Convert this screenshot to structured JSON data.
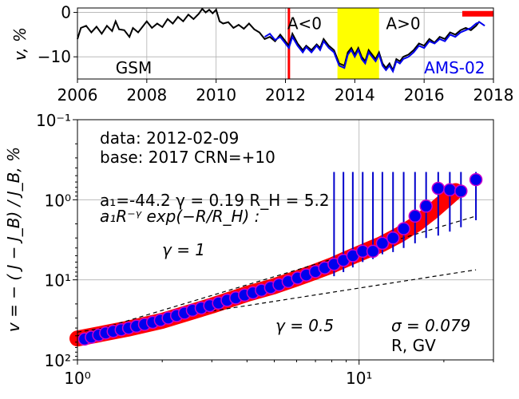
{
  "chart_data": [
    {
      "type": "line",
      "ylabel": "v, %",
      "xlim": [
        2006,
        2018
      ],
      "ylim": [
        -15,
        1
      ],
      "x_ticks": [
        2006,
        2008,
        2010,
        2012,
        2014,
        2016,
        2018
      ],
      "y_ticks": [
        0,
        -10
      ],
      "y_tick_labels": [
        "0",
        "−10"
      ],
      "grid": true,
      "series": [
        {
          "name": "GSM",
          "color": "#000000",
          "points": [
            [
              2006.0,
              -6
            ],
            [
              2006.1,
              -3.5
            ],
            [
              2006.25,
              -3
            ],
            [
              2006.4,
              -4.5
            ],
            [
              2006.55,
              -3.2
            ],
            [
              2006.7,
              -4.8
            ],
            [
              2006.85,
              -3
            ],
            [
              2007.0,
              -4.2
            ],
            [
              2007.1,
              -2
            ],
            [
              2007.2,
              -3.8
            ],
            [
              2007.35,
              -4
            ],
            [
              2007.5,
              -5.5
            ],
            [
              2007.6,
              -3.5
            ],
            [
              2007.75,
              -4.5
            ],
            [
              2007.9,
              -3
            ],
            [
              2008.0,
              -2
            ],
            [
              2008.15,
              -3.5
            ],
            [
              2008.3,
              -2.5
            ],
            [
              2008.45,
              -3.3
            ],
            [
              2008.6,
              -1.5
            ],
            [
              2008.75,
              -2.5
            ],
            [
              2008.9,
              -1
            ],
            [
              2009.05,
              -2
            ],
            [
              2009.2,
              -0.5
            ],
            [
              2009.35,
              -1.5
            ],
            [
              2009.5,
              -0.3
            ],
            [
              2009.6,
              0.8
            ],
            [
              2009.7,
              0
            ],
            [
              2009.8,
              0.6
            ],
            [
              2009.9,
              -0.2
            ],
            [
              2010.0,
              0.6
            ],
            [
              2010.1,
              -2
            ],
            [
              2010.2,
              -2.5
            ],
            [
              2010.35,
              -2.2
            ],
            [
              2010.5,
              -3.5
            ],
            [
              2010.65,
              -2.8
            ],
            [
              2010.8,
              -3.7
            ],
            [
              2010.95,
              -2.5
            ],
            [
              2011.1,
              -3.8
            ],
            [
              2011.25,
              -4.5
            ],
            [
              2011.4,
              -6
            ],
            [
              2011.55,
              -5.5
            ],
            [
              2011.7,
              -6.5
            ],
            [
              2011.85,
              -5
            ],
            [
              2012.0,
              -6.5
            ],
            [
              2012.1,
              -7.5
            ],
            [
              2012.2,
              -4.8
            ],
            [
              2012.35,
              -7
            ],
            [
              2012.5,
              -8.5
            ],
            [
              2012.6,
              -7.5
            ],
            [
              2012.75,
              -8.5
            ],
            [
              2012.9,
              -7.2
            ],
            [
              2013.0,
              -8
            ],
            [
              2013.1,
              -6
            ],
            [
              2013.25,
              -7.5
            ],
            [
              2013.4,
              -8.5
            ],
            [
              2013.55,
              -11.5
            ],
            [
              2013.7,
              -12
            ],
            [
              2013.8,
              -9
            ],
            [
              2013.9,
              -8
            ],
            [
              2014.0,
              -9.5
            ],
            [
              2014.1,
              -8
            ],
            [
              2014.2,
              -10
            ],
            [
              2014.3,
              -11
            ],
            [
              2014.4,
              -8.5
            ],
            [
              2014.5,
              -9.5
            ],
            [
              2014.6,
              -10.5
            ],
            [
              2014.7,
              -9
            ],
            [
              2014.8,
              -11.5
            ],
            [
              2014.9,
              -12.5
            ],
            [
              2015.0,
              -11.5
            ],
            [
              2015.1,
              -13
            ],
            [
              2015.2,
              -10.5
            ],
            [
              2015.3,
              -11
            ],
            [
              2015.4,
              -10
            ],
            [
              2015.55,
              -9.5
            ],
            [
              2015.7,
              -8.5
            ],
            [
              2015.85,
              -7
            ],
            [
              2016.0,
              -7.5
            ],
            [
              2016.15,
              -6
            ],
            [
              2016.3,
              -6.8
            ],
            [
              2016.45,
              -5.5
            ],
            [
              2016.6,
              -6
            ],
            [
              2016.75,
              -4.5
            ],
            [
              2016.9,
              -5
            ],
            [
              2017.05,
              -4
            ],
            [
              2017.2,
              -3.5
            ],
            [
              2017.35,
              -4
            ],
            [
              2017.5,
              -3
            ],
            [
              2017.6,
              -2
            ]
          ]
        },
        {
          "name": "AMS-02",
          "color": "#0000ee",
          "points": [
            [
              2011.4,
              -5.5
            ],
            [
              2011.55,
              -4.8
            ],
            [
              2011.7,
              -6.2
            ],
            [
              2011.85,
              -5.5
            ],
            [
              2012.0,
              -7
            ],
            [
              2012.1,
              -8
            ],
            [
              2012.2,
              -5.5
            ],
            [
              2012.35,
              -7.5
            ],
            [
              2012.5,
              -9
            ],
            [
              2012.6,
              -7.8
            ],
            [
              2012.75,
              -9
            ],
            [
              2012.9,
              -7.5
            ],
            [
              2013.0,
              -8.5
            ],
            [
              2013.1,
              -6.5
            ],
            [
              2013.25,
              -8
            ],
            [
              2013.4,
              -9
            ],
            [
              2013.55,
              -12
            ],
            [
              2013.7,
              -12.5
            ],
            [
              2013.8,
              -9.5
            ],
            [
              2013.9,
              -8.5
            ],
            [
              2014.0,
              -10
            ],
            [
              2014.1,
              -8.5
            ],
            [
              2014.2,
              -10.5
            ],
            [
              2014.3,
              -11.5
            ],
            [
              2014.4,
              -9
            ],
            [
              2014.5,
              -10
            ],
            [
              2014.6,
              -11
            ],
            [
              2014.7,
              -9.5
            ],
            [
              2014.8,
              -12
            ],
            [
              2014.9,
              -13
            ],
            [
              2015.0,
              -12
            ],
            [
              2015.1,
              -13.3
            ],
            [
              2015.2,
              -11
            ],
            [
              2015.3,
              -11.5
            ],
            [
              2015.4,
              -10.5
            ],
            [
              2015.55,
              -10
            ],
            [
              2015.7,
              -9
            ],
            [
              2015.85,
              -7.5
            ],
            [
              2016.0,
              -8
            ],
            [
              2016.15,
              -6.5
            ],
            [
              2016.3,
              -7
            ],
            [
              2016.45,
              -6
            ],
            [
              2016.6,
              -6.5
            ],
            [
              2016.75,
              -5
            ],
            [
              2016.9,
              -5.5
            ],
            [
              2017.05,
              -4.5
            ],
            [
              2017.2,
              -4
            ],
            [
              2017.35,
              -3.5
            ],
            [
              2017.5,
              -2.5
            ],
            [
              2017.6,
              -2.2
            ],
            [
              2017.75,
              -3
            ]
          ]
        }
      ],
      "vertical_marker": {
        "x": 2012.1,
        "color": "#ff0000"
      },
      "shaded_band": {
        "x": [
          2013.5,
          2014.7
        ],
        "color": "#ffff00"
      },
      "base_bar": {
        "x": [
          2017.1,
          2018.0
        ],
        "y": -0.3,
        "color": "#ff0000"
      },
      "annotations": [
        {
          "id": "left",
          "text": "A<0",
          "x": 2012.1,
          "y": -2.5
        },
        {
          "id": "right",
          "text": "A>0",
          "x": 2014.9,
          "y": -2.5
        },
        {
          "id": "gsm",
          "text": "GSM",
          "x": 2007.1,
          "y": -12.5
        },
        {
          "id": "ams",
          "text": "AMS-02",
          "x": 2016.0,
          "y": -12.5,
          "color": "#0000ee"
        }
      ]
    },
    {
      "type": "scatter",
      "xscale": "log",
      "yscale": "log-inverted",
      "xlabel": "R, GV",
      "xlim": [
        1,
        30
      ],
      "ylim": [
        100,
        0.1
      ],
      "x_ticks": [
        1,
        10
      ],
      "x_tick_labels": [
        "10⁰",
        "10¹"
      ],
      "y_ticks": [
        0.1,
        1,
        10,
        100
      ],
      "y_tick_labels": [
        "10⁻¹",
        "10⁰",
        "10¹",
        "10²"
      ],
      "grid": true,
      "points": [
        [
          1.06,
          55
        ],
        [
          1.12,
          52
        ],
        [
          1.19,
          49
        ],
        [
          1.26,
          46
        ],
        [
          1.34,
          44
        ],
        [
          1.43,
          42
        ],
        [
          1.52,
          40
        ],
        [
          1.62,
          38
        ],
        [
          1.73,
          36
        ],
        [
          1.85,
          34
        ],
        [
          1.97,
          32
        ],
        [
          2.1,
          30
        ],
        [
          2.25,
          28
        ],
        [
          2.4,
          26
        ],
        [
          2.56,
          24
        ],
        [
          2.75,
          22.5
        ],
        [
          2.95,
          21
        ],
        [
          3.17,
          19.5
        ],
        [
          3.4,
          18
        ],
        [
          3.65,
          16.8
        ],
        [
          3.92,
          15.5
        ],
        [
          4.2,
          14.5
        ],
        [
          4.5,
          13.5
        ],
        [
          4.85,
          12.5
        ],
        [
          5.2,
          11.5
        ],
        [
          5.6,
          10.5
        ],
        [
          6.05,
          9.5
        ],
        [
          6.5,
          8.7
        ],
        [
          7.0,
          7.9
        ],
        [
          7.55,
          7.1
        ],
        [
          8.15,
          6.4
        ],
        [
          8.8,
          5.7
        ],
        [
          9.5,
          5.0
        ],
        [
          10.3,
          4.4
        ],
        [
          11.2,
          4.4
        ],
        [
          12.1,
          3.5
        ],
        [
          13.2,
          3.0
        ],
        [
          14.4,
          2.3
        ],
        [
          15.8,
          1.6
        ],
        [
          17.3,
          1.2
        ],
        [
          19.1,
          0.72
        ],
        [
          21.0,
          0.75
        ],
        [
          23.0,
          0.78
        ],
        [
          26.0,
          0.56
        ]
      ],
      "error_bars": [
        [
          8.15,
          0.45,
          9.0
        ],
        [
          8.8,
          0.45,
          8.0
        ],
        [
          9.5,
          0.45,
          7.0
        ],
        [
          10.3,
          0.45,
          6.0
        ],
        [
          11.2,
          0.45,
          5.5
        ],
        [
          12.1,
          0.45,
          4.8
        ],
        [
          13.2,
          0.45,
          4.5
        ],
        [
          14.4,
          0.45,
          4.0
        ],
        [
          15.8,
          0.45,
          3.5
        ],
        [
          17.3,
          0.45,
          3.0
        ],
        [
          19.1,
          0.45,
          2.8
        ],
        [
          21.0,
          0.45,
          2.5
        ],
        [
          23.0,
          0.45,
          2.2
        ],
        [
          26.0,
          0.45,
          1.8
        ]
      ],
      "fit_curve": [
        [
          1.0,
          54
        ],
        [
          1.5,
          41
        ],
        [
          2.0,
          32.5
        ],
        [
          3.0,
          21
        ],
        [
          4.0,
          15
        ],
        [
          5.0,
          12
        ],
        [
          6.0,
          9.6
        ],
        [
          7.0,
          7.9
        ],
        [
          8.0,
          6.6
        ],
        [
          9.0,
          5.5
        ],
        [
          10.0,
          4.7
        ],
        [
          12.0,
          3.6
        ],
        [
          14.0,
          2.7
        ],
        [
          16.0,
          2.0
        ],
        [
          18.0,
          1.45
        ],
        [
          20.0,
          1.05
        ],
        [
          22.0,
          0.78
        ]
      ],
      "dashed_lines": [
        {
          "id": "gamma1",
          "points": [
            [
              1.0,
              50
            ],
            [
              26.0,
              1.6
            ]
          ]
        },
        {
          "id": "gamma05",
          "points": [
            [
              1.0,
              45
            ],
            [
              26.0,
              7.5
            ]
          ]
        }
      ],
      "colors": {
        "marker_fill": "#0000ee",
        "marker_edge": "#cc00cc",
        "band": "#ff0000",
        "error": "#0000cc"
      },
      "annotations": [
        {
          "id": "data_line",
          "text": "data: 2012-02-09"
        },
        {
          "id": "base_line",
          "text": "base: 2017   CRN=+10"
        },
        {
          "id": "params",
          "text": "a₁=-44.2  γ = 0.19  R_H =  5.2"
        },
        {
          "id": "formula",
          "text": "a₁R⁻ᵞ exp(−R/R_H) :"
        },
        {
          "id": "gamma1",
          "text": "γ = 1"
        },
        {
          "id": "gamma05",
          "text": "γ = 0.5"
        },
        {
          "id": "sigma",
          "text": "σ = 0.079"
        }
      ],
      "ylabel": "v = − ( J − J_B) / J_B, %"
    }
  ]
}
